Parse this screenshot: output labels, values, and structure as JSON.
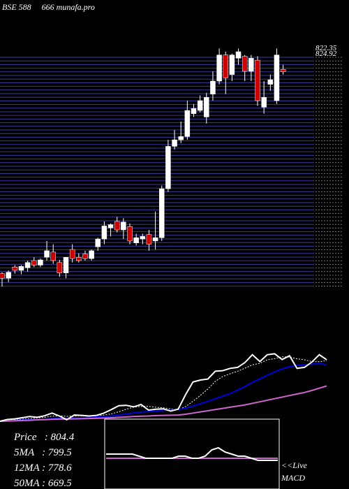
{
  "chart_data": {
    "type": "candlestick",
    "title": "BSE 588     666 munafa.pro",
    "price_labels": [
      "822.35",
      "824.92"
    ],
    "ylim": [
      470,
      850
    ],
    "open": [
      495,
      488,
      505,
      500,
      504,
      515,
      508,
      520,
      528,
      512,
      496,
      532,
      520,
      525,
      518,
      536,
      548,
      565,
      575,
      562,
      567,
      542,
      548,
      555,
      545,
      550,
      625,
      690,
      700,
      705,
      740,
      745,
      735,
      770,
      790,
      830,
      800,
      825,
      828,
      805,
      822,
      750,
      785,
      760,
      808
    ],
    "high": [
      497,
      500,
      508,
      508,
      515,
      520,
      518,
      545,
      540,
      516,
      520,
      540,
      526,
      530,
      532,
      550,
      575,
      572,
      582,
      580,
      572,
      556,
      556,
      562,
      590,
      630,
      700,
      715,
      728,
      760,
      755,
      768,
      772,
      805,
      840,
      835,
      832,
      840,
      830,
      830,
      828,
      790,
      800,
      840,
      815
    ],
    "low": [
      475,
      482,
      495,
      494,
      498,
      505,
      505,
      515,
      510,
      490,
      488,
      512,
      512,
      515,
      515,
      530,
      540,
      552,
      558,
      548,
      540,
      538,
      540,
      530,
      532,
      545,
      620,
      685,
      695,
      700,
      735,
      742,
      725,
      760,
      785,
      770,
      790,
      815,
      790,
      790,
      752,
      740,
      775,
      755,
      800
    ],
    "close": [
      488,
      497,
      500,
      506,
      512,
      508,
      516,
      530,
      515,
      496,
      520,
      518,
      515,
      518,
      530,
      548,
      568,
      570,
      562,
      574,
      545,
      550,
      552,
      540,
      550,
      625,
      690,
      700,
      705,
      745,
      748,
      760,
      765,
      790,
      830,
      795,
      830,
      835,
      805,
      825,
      760,
      765,
      792,
      830,
      804.4
    ],
    "up_color": "#ffffff",
    "down_color": "#cc0000",
    "ma_ylim": [
      470,
      840
    ],
    "close_color": "#ffffff",
    "series": [
      {
        "name": "5MA",
        "color": "#ffffff",
        "values": [
          488,
          492,
          495,
          498,
          501,
          505,
          508,
          514,
          516,
          513,
          515,
          516,
          513,
          517,
          520,
          526,
          536,
          550,
          560,
          564,
          564,
          560,
          557,
          552,
          547,
          563,
          591,
          621,
          654,
          693,
          718,
          732,
          745,
          761,
          778,
          786,
          804,
          810,
          819,
          818,
          809,
          804,
          795,
          794,
          799.5
        ]
      },
      {
        "name": "12MA",
        "color": "#0000dd",
        "values": [
          488,
          490,
          492,
          494,
          496,
          497,
          499,
          501,
          503,
          502,
          504,
          505,
          508,
          510,
          511,
          515,
          520,
          525,
          530,
          535,
          538,
          541,
          544,
          546,
          548,
          555,
          566,
          578,
          590,
          604,
          617,
          630,
          648,
          667,
          688,
          706,
          725,
          742,
          757,
          768,
          775,
          778,
          781,
          784,
          778.6
        ]
      },
      {
        "name": "50MA",
        "color": "#cc66cc",
        "values": [
          488,
          489,
          490,
          492,
          493,
          495,
          496,
          498,
          499,
          499,
          500,
          501,
          502,
          503,
          504,
          506,
          508,
          510,
          512,
          514,
          515,
          517,
          518,
          519,
          520,
          524,
          530,
          536,
          542,
          548,
          554,
          560,
          566,
          572,
          580,
          588,
          596,
          604,
          612,
          620,
          628,
          636,
          646,
          658,
          669.5
        ]
      }
    ],
    "legend": [
      "Price   : 804.4",
      "5MA   : 799.5",
      "12MA : 778.6",
      "50MA : 669.5"
    ],
    "macd": {
      "label": "MACD",
      "live": "<<Live",
      "ylim": [
        -10,
        10
      ],
      "values": [
        0,
        0,
        0,
        0,
        0,
        -1,
        -2,
        -2,
        -2,
        -2,
        -2,
        -1,
        -1,
        -2,
        -2,
        -1,
        2,
        3,
        1,
        0,
        -1,
        -1,
        -2,
        -3,
        -3,
        -3,
        -3
      ],
      "signal": [
        -2,
        -2,
        -2,
        -2,
        -2,
        -2,
        -2,
        -2,
        -2,
        -2,
        -2,
        -2,
        -2,
        -2,
        -2,
        -2,
        -2,
        -2,
        -2,
        -2,
        -2,
        -2,
        -2,
        -2,
        -2,
        -2,
        -2
      ],
      "color": "#ffffff",
      "signal_color": "#cc66cc"
    }
  }
}
